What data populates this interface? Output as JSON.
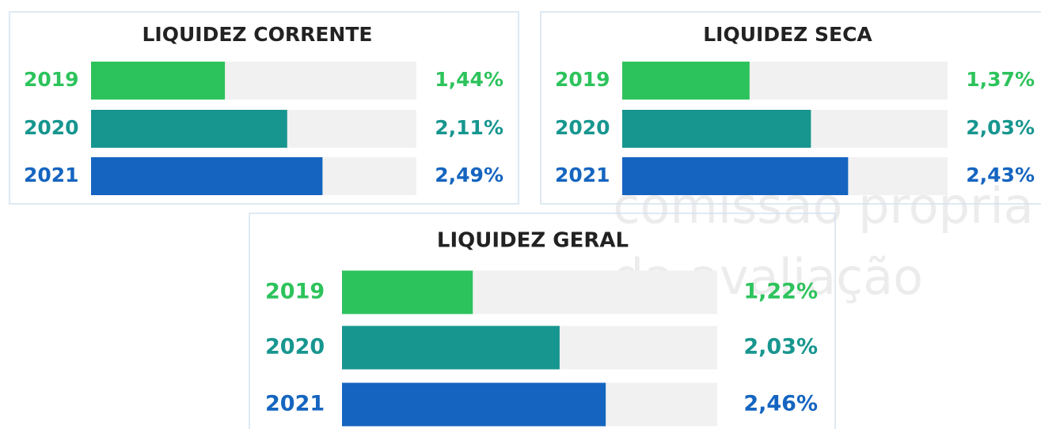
{
  "watermark": [
    "comissão própria",
    "da avaliação"
  ],
  "chart_data": [
    {
      "type": "bar",
      "horizontal": true,
      "title": "LIQUIDEZ CORRENTE",
      "categories": [
        "2019",
        "2020",
        "2021"
      ],
      "values": [
        1.44,
        2.11,
        2.49
      ],
      "value_labels": [
        "1,44%",
        "2,11%",
        "2,49%"
      ],
      "colors": [
        "#2dc35c",
        "#17968f",
        "#1565c0"
      ],
      "xlim": [
        0,
        3.5
      ]
    },
    {
      "type": "bar",
      "horizontal": true,
      "title": "LIQUIDEZ SECA",
      "categories": [
        "2019",
        "2020",
        "2021"
      ],
      "values": [
        1.37,
        2.03,
        2.43
      ],
      "value_labels": [
        "1,37%",
        "2,03%",
        "2,43%"
      ],
      "colors": [
        "#2dc35c",
        "#17968f",
        "#1565c0"
      ],
      "xlim": [
        0,
        3.5
      ]
    },
    {
      "type": "bar",
      "horizontal": true,
      "title": "LIQUIDEZ GERAL",
      "categories": [
        "2019",
        "2020",
        "2021"
      ],
      "values": [
        1.22,
        2.03,
        2.46
      ],
      "value_labels": [
        "1,22%",
        "2,03%",
        "2,46%"
      ],
      "colors": [
        "#2dc35c",
        "#17968f",
        "#1565c0"
      ],
      "xlim": [
        0,
        3.5
      ]
    }
  ]
}
